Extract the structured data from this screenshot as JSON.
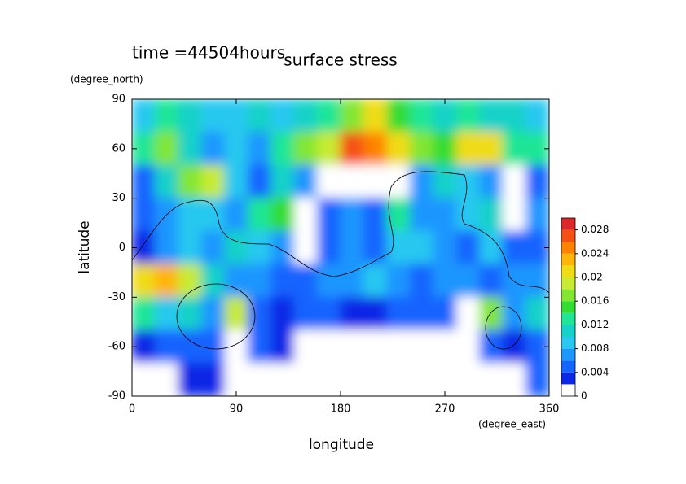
{
  "chart_data": {
    "type": "contour",
    "annotation": "time =44504hours",
    "title": "surface stress",
    "ylabel_unit": "(degree_north)",
    "xlabel_unit": "(degree_east)",
    "xlabel": "longitude",
    "ylabel": "latitude",
    "x": [
      10,
      30,
      50,
      70,
      90,
      110,
      130,
      150,
      170,
      190,
      210,
      230,
      250,
      270,
      290,
      310,
      330,
      350
    ],
    "y": [
      80,
      60,
      40,
      20,
      0,
      -20,
      -40,
      -60,
      -80
    ],
    "z": [
      [
        0.008,
        0.012,
        0.01,
        0.008,
        0.008,
        0.01,
        0.008,
        0.01,
        0.012,
        0.016,
        0.02,
        0.014,
        0.012,
        0.01,
        0.012,
        0.01,
        0.01,
        0.008
      ],
      [
        0.012,
        0.016,
        0.01,
        0.006,
        0.008,
        0.006,
        0.012,
        0.016,
        0.018,
        0.026,
        0.024,
        0.02,
        0.016,
        0.014,
        0.02,
        0.02,
        0.012,
        0.012
      ],
      [
        0.004,
        0.01,
        0.016,
        0.018,
        0.008,
        0.004,
        0.01,
        0.006,
        0,
        0,
        0,
        0,
        0.006,
        0.01,
        0.008,
        0.006,
        0,
        0.004
      ],
      [
        0.004,
        0.006,
        0.008,
        0.008,
        0.006,
        0.012,
        0.014,
        0,
        0.004,
        0.006,
        0.004,
        0.012,
        0.006,
        0.006,
        0.008,
        0.01,
        0,
        0.006
      ],
      [
        0.002,
        0.006,
        0.008,
        0.006,
        0.01,
        0.008,
        0.006,
        0,
        0.004,
        0.006,
        0.004,
        0.008,
        0.008,
        0.006,
        0.004,
        0.008,
        0.004,
        0.004
      ],
      [
        0.02,
        0.022,
        0.018,
        0.01,
        0.006,
        0.006,
        0.004,
        0.004,
        0.006,
        0.006,
        0.008,
        0.006,
        0.004,
        0.006,
        0.006,
        0.004,
        0.006,
        0.006
      ],
      [
        0.012,
        0.008,
        0.01,
        0.006,
        0.018,
        0.004,
        0.002,
        0.004,
        0.004,
        0.002,
        0.002,
        0.004,
        0.004,
        0.004,
        0,
        0.016,
        0.006,
        0.01
      ],
      [
        0.002,
        0.004,
        0.004,
        0.004,
        0,
        0.004,
        0.002,
        0,
        0,
        0,
        0,
        0,
        0,
        0,
        0,
        0.004,
        0.002,
        0.004
      ],
      [
        0,
        0,
        0.002,
        0.002,
        0,
        0,
        0,
        0,
        0,
        0,
        0,
        0,
        0,
        0,
        0,
        0,
        0,
        0.004
      ]
    ],
    "xlim": [
      0,
      360
    ],
    "xticks": [
      0,
      90,
      180,
      270,
      360
    ],
    "ylim": [
      -90,
      90
    ],
    "yticks": [
      -90,
      -60,
      -30,
      0,
      30,
      60,
      90
    ],
    "colorbar": {
      "levels": [
        0,
        0.002,
        0.004,
        0.006,
        0.008,
        0.01,
        0.012,
        0.014,
        0.016,
        0.018,
        0.02,
        0.022,
        0.024,
        0.026,
        0.028,
        0.03
      ],
      "colors": [
        "#ffffff",
        "#0a28e6",
        "#1464ff",
        "#1e96ff",
        "#28c8f0",
        "#14d2c8",
        "#1ee696",
        "#32dc32",
        "#82e632",
        "#c8eb32",
        "#f0dc14",
        "#ffb40a",
        "#ff8200",
        "#f55014",
        "#dc2828"
      ],
      "ticks": [
        0,
        0.004,
        0.008,
        0.012,
        0.016,
        0.02,
        0.024,
        0.028
      ]
    }
  }
}
